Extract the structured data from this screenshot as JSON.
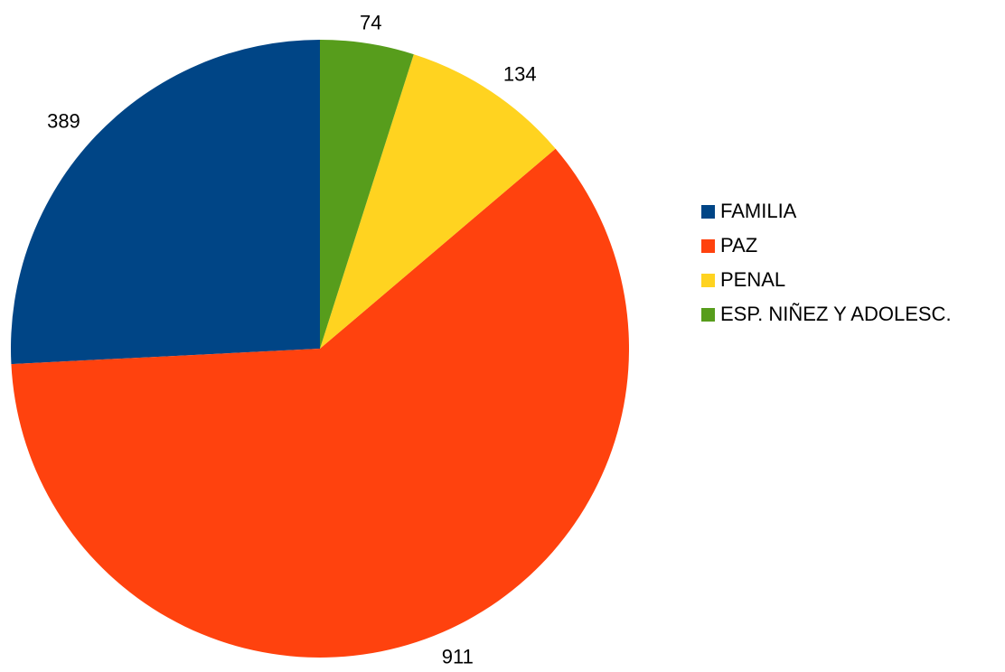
{
  "chart_data": {
    "type": "pie",
    "title": "",
    "categories": [
      "FAMILIA",
      "PAZ",
      "PENAL",
      "ESP. NIÑEZ Y ADOLESC."
    ],
    "values": [
      389,
      911,
      134,
      74
    ],
    "colors": [
      "#004586",
      "#ff420e",
      "#ffd320",
      "#579d1c"
    ],
    "start_angle_deg": 0,
    "direction": "clockwise",
    "legend_position": "right",
    "data_labels": [
      "389",
      "911",
      "134",
      "74"
    ]
  }
}
